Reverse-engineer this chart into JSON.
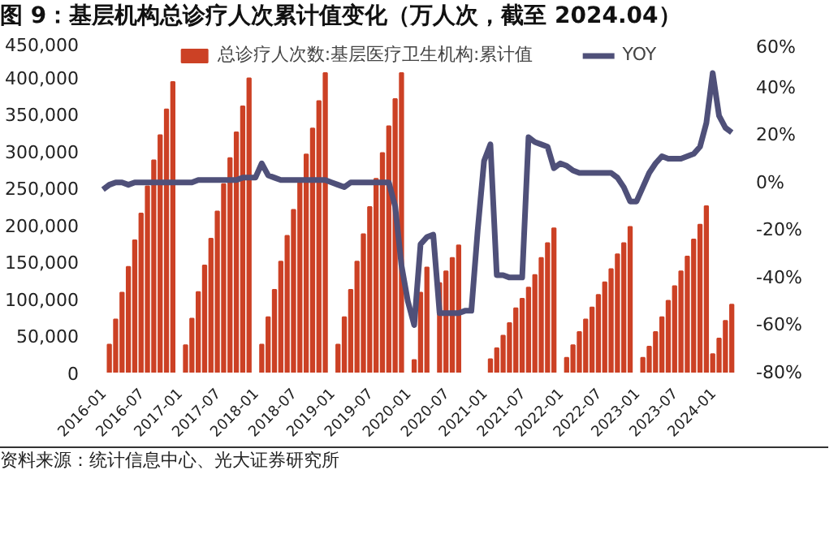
{
  "chart_data": {
    "type": "bar",
    "title": "图 9：基层机构总诊疗人次累计值变化（万人次，截至 2024.04）",
    "categories": [
      "2016-01",
      null,
      null,
      null,
      null,
      null,
      "2016-07",
      null,
      null,
      null,
      null,
      null,
      "2017-01",
      null,
      null,
      null,
      null,
      null,
      "2017-07",
      null,
      null,
      null,
      null,
      null,
      "2018-01",
      null,
      null,
      null,
      null,
      null,
      "2018-07",
      null,
      null,
      null,
      null,
      null,
      "2019-01",
      null,
      null,
      null,
      null,
      null,
      "2019-07",
      null,
      null,
      null,
      null,
      null,
      "2020-01",
      null,
      null,
      null,
      null,
      null,
      "2020-07",
      null,
      null,
      null,
      null,
      null,
      "2021-01",
      null,
      null,
      null,
      null,
      null,
      "2021-07",
      null,
      null,
      null,
      null,
      null,
      "2022-01",
      null,
      null,
      null,
      null,
      null,
      "2022-07",
      null,
      null,
      null,
      null,
      null,
      "2023-01",
      null,
      null,
      null,
      null,
      null,
      "2023-07",
      null,
      null,
      null,
      null,
      null,
      "2024-01",
      null,
      null,
      null
    ],
    "series": [
      {
        "name": "总诊疗人次数:基层医疗卫生机构:累计值",
        "color": "#cc4125",
        "values": [
          null,
          38000,
          72000,
          108000,
          143000,
          179000,
          215000,
          252000,
          287000,
          321000,
          356000,
          393000,
          null,
          37000,
          73000,
          109000,
          145000,
          181000,
          218000,
          255000,
          290000,
          325000,
          360000,
          398000,
          null,
          38000,
          75000,
          112000,
          150000,
          185000,
          220000,
          257000,
          295000,
          330000,
          367000,
          405000,
          null,
          38000,
          75000,
          112000,
          150000,
          187000,
          224000,
          262000,
          297000,
          333000,
          370000,
          405000,
          null,
          17000,
          108000,
          142000,
          null,
          121000,
          137000,
          155000,
          172000,
          null,
          null,
          null,
          null,
          18000,
          33000,
          50000,
          67000,
          87000,
          100000,
          115000,
          132000,
          155000,
          175000,
          195000,
          null,
          20000,
          37000,
          55000,
          72000,
          88000,
          105000,
          122000,
          140000,
          160000,
          175000,
          197000,
          null,
          20000,
          35000,
          55000,
          75000,
          97000,
          117000,
          137000,
          157000,
          180000,
          200000,
          225000,
          25000,
          46000,
          70000,
          92000
        ]
      },
      {
        "name": "YOY",
        "type": "line",
        "axis": "y2",
        "color": "#4f5079",
        "values": [
          -3,
          -1,
          0,
          0,
          -1,
          0,
          0,
          0,
          0,
          0,
          0,
          0,
          0,
          0,
          0,
          1,
          1,
          1,
          1,
          1,
          1,
          1,
          2,
          2,
          2,
          8,
          3,
          2,
          1,
          1,
          1,
          1,
          1,
          1,
          1,
          1,
          0,
          -1,
          -2,
          0,
          0,
          0,
          0,
          0,
          0,
          0,
          -10,
          -35,
          -50,
          -60,
          -26,
          -23,
          -22,
          -55,
          -55,
          -55,
          -55,
          -54,
          -54,
          -20,
          9,
          16,
          -39,
          -39,
          -40,
          -40,
          -40,
          19,
          17,
          16,
          15,
          6,
          8,
          7,
          5,
          4,
          4,
          4,
          4,
          4,
          4,
          2,
          -2,
          -8,
          -8,
          -2,
          4,
          8,
          11,
          10,
          10,
          10,
          11,
          12,
          15,
          25,
          46,
          28,
          23,
          21
        ]
      }
    ],
    "ylim": [
      0,
      450000
    ],
    "yticks": [
      {
        "value": 0,
        "label": "0"
      },
      {
        "value": 50000,
        "label": "50,000"
      },
      {
        "value": 100000,
        "label": "100,000"
      },
      {
        "value": 150000,
        "label": "150,000"
      },
      {
        "value": 200000,
        "label": "200,000"
      },
      {
        "value": 250000,
        "label": "250,000"
      },
      {
        "value": 300000,
        "label": "300,000"
      },
      {
        "value": 350000,
        "label": "350,000"
      },
      {
        "value": 400000,
        "label": "400,000"
      },
      {
        "value": 450000,
        "label": "450,000"
      }
    ],
    "y2lim": [
      -80,
      60
    ],
    "y2ticks": [
      {
        "value": -80,
        "label": "-80%"
      },
      {
        "value": -60,
        "label": "-60%"
      },
      {
        "value": -40,
        "label": "-40%"
      },
      {
        "value": -20,
        "label": "-20%"
      },
      {
        "value": 0,
        "label": "0%"
      },
      {
        "value": 20,
        "label": "20%"
      },
      {
        "value": 40,
        "label": "40%"
      },
      {
        "value": 60,
        "label": "60%"
      }
    ],
    "legend": "top",
    "grid": false,
    "annotations": [
      "资料来源：统计信息中心、光大证券研究所"
    ]
  }
}
